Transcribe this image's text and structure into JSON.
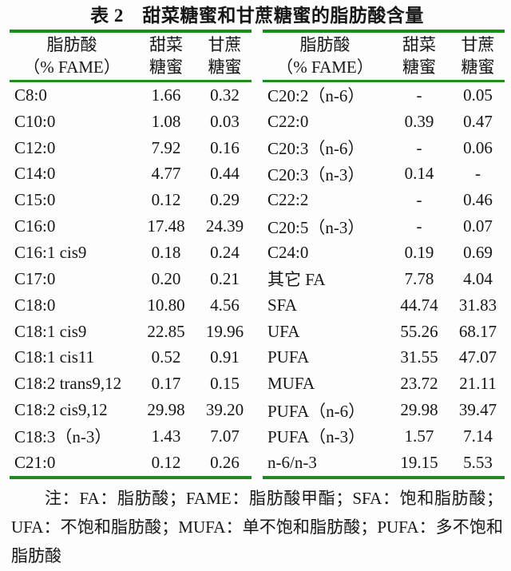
{
  "title": "表 2　甜菜糖蜜和甘蔗糖蜜的脂肪酸含量",
  "colors": {
    "rule_green": "#1f8a1f",
    "text": "#161616",
    "background": "#fdfdfd"
  },
  "columns": {
    "fatty_acid_line1": "脂肪酸",
    "fatty_acid_line2": "（% FAME）",
    "beet_line1": "甜菜",
    "beet_line2": "糖蜜",
    "cane_line1": "甘蔗",
    "cane_line2": "糖蜜"
  },
  "left_rows": [
    {
      "name": "C8:0",
      "beet": "1.66",
      "cane": "0.32"
    },
    {
      "name": "C10:0",
      "beet": "1.08",
      "cane": "0.03"
    },
    {
      "name": "C12:0",
      "beet": "7.92",
      "cane": "0.16"
    },
    {
      "name": "C14:0",
      "beet": "4.77",
      "cane": "0.44"
    },
    {
      "name": "C15:0",
      "beet": "0.12",
      "cane": "0.29"
    },
    {
      "name": "C16:0",
      "beet": "17.48",
      "cane": "24.39"
    },
    {
      "name": "C16:1 cis9",
      "beet": "0.18",
      "cane": "0.24"
    },
    {
      "name": "C17:0",
      "beet": "0.20",
      "cane": "0.21"
    },
    {
      "name": "C18:0",
      "beet": "10.80",
      "cane": "4.56"
    },
    {
      "name": "C18:1 cis9",
      "beet": "22.85",
      "cane": "19.96"
    },
    {
      "name": "C18:1 cis11",
      "beet": "0.52",
      "cane": "0.91"
    },
    {
      "name": "C18:2 trans9,12",
      "beet": "0.17",
      "cane": "0.15"
    },
    {
      "name": "C18:2 cis9,12",
      "beet": "29.98",
      "cane": "39.20"
    },
    {
      "name": "C18:3（n-3）",
      "beet": "1.43",
      "cane": "7.07"
    },
    {
      "name": "C21:0",
      "beet": "0.12",
      "cane": "0.26"
    }
  ],
  "right_rows": [
    {
      "name": "C20:2（n-6）",
      "beet": "-",
      "cane": "0.05"
    },
    {
      "name": "C22:0",
      "beet": "0.39",
      "cane": "0.47"
    },
    {
      "name": "C20:3（n-6）",
      "beet": "-",
      "cane": "0.06"
    },
    {
      "name": "C20:3（n-3）",
      "beet": "0.14",
      "cane": "-"
    },
    {
      "name": "C22:2",
      "beet": "-",
      "cane": "0.46"
    },
    {
      "name": "C20:5（n-3）",
      "beet": "-",
      "cane": "0.07"
    },
    {
      "name": "C24:0",
      "beet": "0.19",
      "cane": "0.69"
    },
    {
      "name": "其它 FA",
      "beet": "7.78",
      "cane": "4.04"
    },
    {
      "name": "SFA",
      "beet": "44.74",
      "cane": "31.83"
    },
    {
      "name": "UFA",
      "beet": "55.26",
      "cane": "68.17"
    },
    {
      "name": "PUFA",
      "beet": "31.55",
      "cane": "47.07"
    },
    {
      "name": "MUFA",
      "beet": "23.72",
      "cane": "21.11"
    },
    {
      "name": "PUFA（n-6）",
      "beet": "29.98",
      "cane": "39.47"
    },
    {
      "name": "PUFA（n-3）",
      "beet": "1.57",
      "cane": "7.14"
    },
    {
      "name": "n-6/n-3",
      "beet": "19.15",
      "cane": "5.53"
    }
  ],
  "note": "注：FA：脂肪酸；FAME：脂肪酸甲酯；SFA：饱和脂肪酸；UFA：不饱和脂肪酸；MUFA：单不饱和脂肪酸；PUFA：多不饱和脂肪酸"
}
